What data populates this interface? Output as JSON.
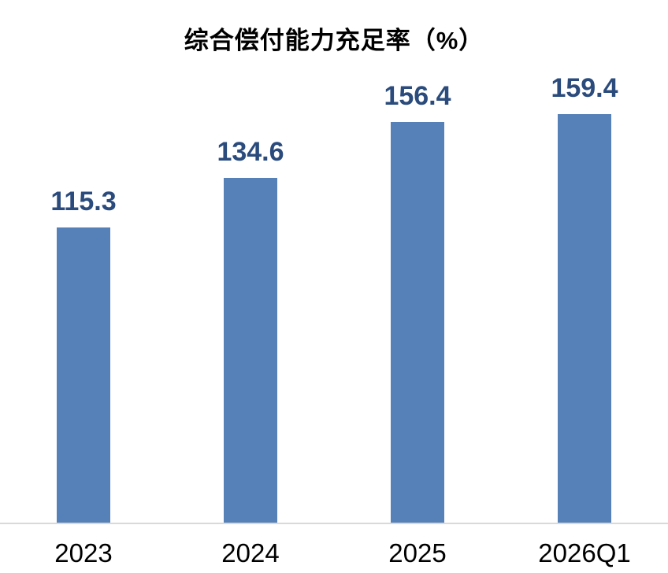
{
  "chart_data": {
    "type": "bar",
    "title": "综合偿付能力充足率（%）",
    "categories": [
      "2023",
      "2024",
      "2025",
      "2026Q1"
    ],
    "values": [
      115.3,
      134.6,
      156.4,
      159.4
    ],
    "value_labels": [
      "115.3",
      "134.6",
      "156.4",
      "159.4"
    ],
    "xlabel": "",
    "ylabel": "",
    "ylim": [
      0,
      180
    ],
    "grid": false,
    "legend": "none",
    "colors": {
      "bar_fill": "#5580B8",
      "value_label": "#2A4B7C",
      "axis_line": "#D9D9D9",
      "title": "#000000",
      "tick_label": "#000000"
    }
  }
}
